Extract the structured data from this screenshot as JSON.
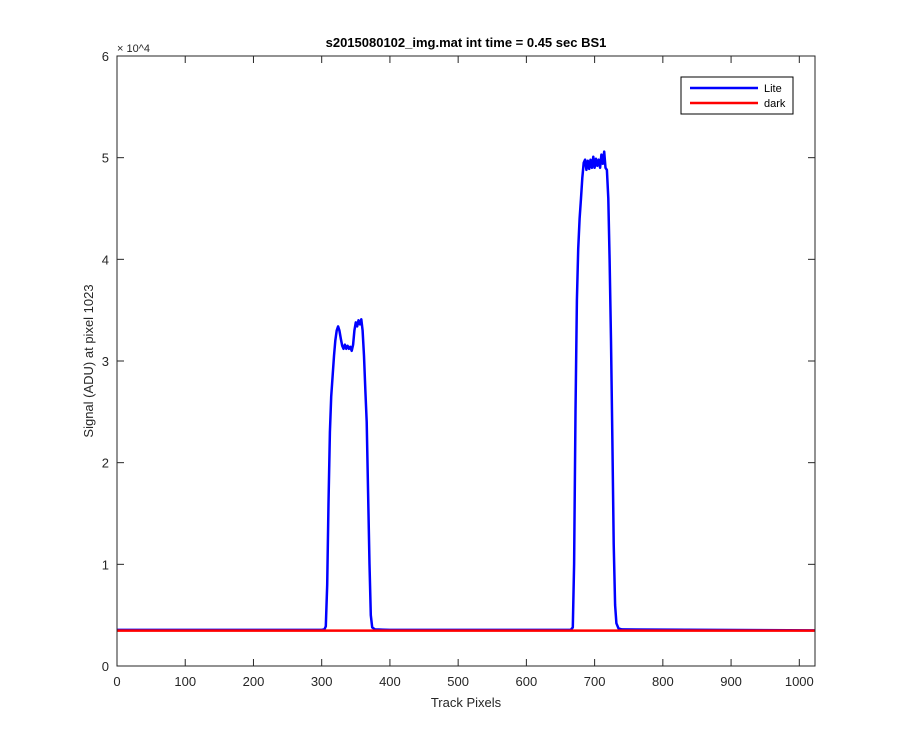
{
  "chart_data": {
    "type": "line",
    "title": "s2015080102_img.mat int time = 0.45 sec   BS1",
    "xlabel": "Track Pixels",
    "ylabel": "Signal (ADU) at pixel 1023",
    "xlim": [
      0,
      1023
    ],
    "ylim": [
      0,
      60000
    ],
    "y_exponent_label": "× 10^4",
    "x_ticks": [
      0,
      100,
      200,
      300,
      400,
      500,
      600,
      700,
      800,
      900,
      1000
    ],
    "x_tick_labels": [
      "0",
      "100",
      "200",
      "300",
      "400",
      "500",
      "600",
      "700",
      "800",
      "900",
      "1000"
    ],
    "y_ticks": [
      0,
      10000,
      20000,
      30000,
      40000,
      50000,
      60000
    ],
    "y_tick_labels": [
      "0",
      "1",
      "2",
      "3",
      "4",
      "5",
      "6"
    ],
    "grid": false,
    "legend_position": "top-right",
    "series": [
      {
        "name": "Lite",
        "color": "#0000ff",
        "points": [
          [
            0,
            3550
          ],
          [
            300,
            3550
          ],
          [
            304,
            3600
          ],
          [
            306,
            3900
          ],
          [
            308,
            8000
          ],
          [
            310,
            16000
          ],
          [
            312,
            23000
          ],
          [
            314,
            26500
          ],
          [
            316,
            28500
          ],
          [
            318,
            30500
          ],
          [
            320,
            32000
          ],
          [
            322,
            33000
          ],
          [
            324,
            33400
          ],
          [
            326,
            33000
          ],
          [
            328,
            32200
          ],
          [
            330,
            31500
          ],
          [
            332,
            31200
          ],
          [
            334,
            31600
          ],
          [
            336,
            31200
          ],
          [
            338,
            31500
          ],
          [
            340,
            31200
          ],
          [
            342,
            31400
          ],
          [
            344,
            31000
          ],
          [
            346,
            31600
          ],
          [
            348,
            33000
          ],
          [
            350,
            33800
          ],
          [
            352,
            33400
          ],
          [
            354,
            34000
          ],
          [
            356,
            33600
          ],
          [
            358,
            34100
          ],
          [
            360,
            33000
          ],
          [
            362,
            30500
          ],
          [
            364,
            27000
          ],
          [
            366,
            24000
          ],
          [
            368,
            17000
          ],
          [
            370,
            10000
          ],
          [
            372,
            5000
          ],
          [
            374,
            3800
          ],
          [
            378,
            3600
          ],
          [
            400,
            3550
          ],
          [
            665,
            3550
          ],
          [
            668,
            3800
          ],
          [
            670,
            10000
          ],
          [
            672,
            25000
          ],
          [
            674,
            36000
          ],
          [
            676,
            41000
          ],
          [
            678,
            44000
          ],
          [
            680,
            46000
          ],
          [
            682,
            48000
          ],
          [
            684,
            49500
          ],
          [
            686,
            49800
          ],
          [
            688,
            48800
          ],
          [
            690,
            49700
          ],
          [
            692,
            48900
          ],
          [
            694,
            49800
          ],
          [
            696,
            49000
          ],
          [
            698,
            50100
          ],
          [
            700,
            49000
          ],
          [
            702,
            49900
          ],
          [
            704,
            49200
          ],
          [
            706,
            49800
          ],
          [
            708,
            49000
          ],
          [
            710,
            50300
          ],
          [
            712,
            49400
          ],
          [
            714,
            50600
          ],
          [
            716,
            49000
          ],
          [
            718,
            48800
          ],
          [
            720,
            46000
          ],
          [
            722,
            40000
          ],
          [
            724,
            32000
          ],
          [
            726,
            22000
          ],
          [
            728,
            12000
          ],
          [
            730,
            6000
          ],
          [
            732,
            4200
          ],
          [
            735,
            3700
          ],
          [
            740,
            3600
          ],
          [
            1023,
            3500
          ]
        ]
      },
      {
        "name": "dark",
        "color": "#ff0000",
        "points": [
          [
            0,
            3480
          ],
          [
            1023,
            3480
          ]
        ]
      }
    ]
  }
}
